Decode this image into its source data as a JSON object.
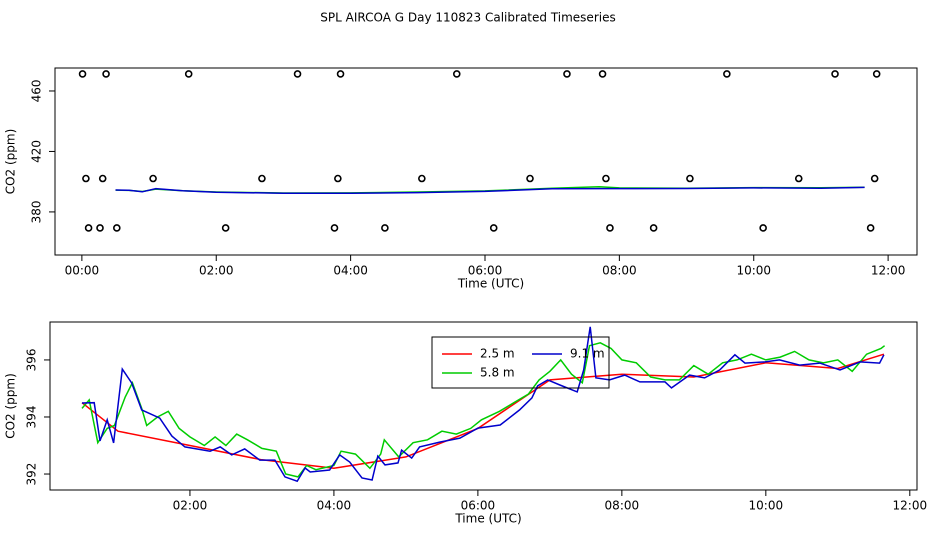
{
  "chart_data": [
    {
      "type": "line",
      "title": "SPL AIRCOA G  Day 110823  Calibrated Timeseries",
      "xlabel": "Time (UTC)",
      "ylabel": "CO2 (ppm)",
      "xlim": [
        -0.4,
        12.43
      ],
      "ylim": [
        351.5,
        475.2
      ],
      "xticks": [
        {
          "value": 0,
          "label": "00:00"
        },
        {
          "value": 2,
          "label": "02:00"
        },
        {
          "value": 4,
          "label": "04:00"
        },
        {
          "value": 6,
          "label": "06:00"
        },
        {
          "value": 8,
          "label": "08:00"
        },
        {
          "value": 10,
          "label": "10:00"
        },
        {
          "value": 12,
          "label": "12:00"
        }
      ],
      "yticks": [
        380,
        420,
        460
      ],
      "series": [
        {
          "color": "#00cc00",
          "x": [
            0.5,
            0.7,
            0.9,
            1.1,
            1.5,
            2.0,
            3.0,
            4.0,
            5.0,
            6.0,
            7.0,
            7.7,
            8.0,
            9.0,
            10.0,
            11.0,
            11.65
          ],
          "values": [
            394.4,
            394.2,
            393.5,
            395.1,
            394.0,
            393.2,
            392.5,
            392.6,
            393.2,
            393.9,
            395.6,
            396.6,
            395.9,
            395.7,
            396.1,
            396.0,
            396.3
          ]
        },
        {
          "color": "#0000cc",
          "x": [
            0.5,
            0.7,
            0.9,
            1.1,
            1.5,
            2.0,
            3.0,
            4.0,
            5.0,
            6.0,
            7.0,
            7.7,
            8.0,
            9.0,
            10.0,
            11.0,
            11.65
          ],
          "values": [
            394.5,
            394.3,
            393.3,
            395.4,
            394.0,
            393.0,
            392.4,
            392.3,
            392.8,
            393.6,
            395.3,
            395.4,
            395.4,
            395.5,
            395.9,
            395.7,
            396.2
          ]
        },
        {
          "color": "#000000",
          "marker": "circle",
          "x": [
            0.01,
            0.36,
            1.59,
            3.21,
            3.85,
            5.58,
            7.22,
            7.75,
            9.6,
            11.21,
            11.83
          ],
          "values": [
            471.3,
            471.3,
            471.3,
            471.3,
            471.3,
            471.3,
            471.3,
            471.3,
            471.3,
            471.3,
            471.3
          ]
        },
        {
          "color": "#000000",
          "marker": "circle",
          "x": [
            0.06,
            0.31,
            1.06,
            2.68,
            3.81,
            5.06,
            6.67,
            7.8,
            9.05,
            10.67,
            11.8
          ],
          "values": [
            402.1,
            402.1,
            402.1,
            402.1,
            402.1,
            402.1,
            402.1,
            402.1,
            402.1,
            402.1,
            402.1
          ]
        },
        {
          "color": "#000000",
          "marker": "circle",
          "x": [
            0.1,
            0.27,
            0.52,
            2.14,
            3.76,
            4.51,
            6.13,
            7.86,
            8.51,
            10.14,
            11.74
          ],
          "values": [
            369.4,
            369.4,
            369.4,
            369.4,
            369.4,
            369.4,
            369.4,
            369.4,
            369.4,
            369.4,
            369.4
          ]
        }
      ]
    },
    {
      "type": "line",
      "xlabel": "Time (UTC)",
      "ylabel": "CO2 (ppm)",
      "xlim": [
        0.056,
        12.1
      ],
      "ylim": [
        391.44,
        397.33
      ],
      "xticks": [
        {
          "value": 2,
          "label": "02:00"
        },
        {
          "value": 4,
          "label": "04:00"
        },
        {
          "value": 6,
          "label": "06:00"
        },
        {
          "value": 8,
          "label": "08:00"
        },
        {
          "value": 10,
          "label": "10:00"
        },
        {
          "value": 12,
          "label": "12:00"
        }
      ],
      "yticks": [
        392,
        394,
        396
      ],
      "legend": "top",
      "series": [
        {
          "name": "2.5 m",
          "color": "#ff0000",
          "x": [
            0.5,
            1.0,
            2.0,
            3.0,
            4.0,
            5.0,
            6.0,
            7.0,
            8.0,
            9.0,
            10.0,
            11.0,
            11.64
          ],
          "values": [
            394.5,
            393.5,
            393.0,
            392.5,
            392.2,
            392.6,
            393.6,
            395.3,
            395.5,
            395.4,
            395.9,
            395.7,
            396.2
          ]
        },
        {
          "name": "5.8 m",
          "color": "#00cc00",
          "x": [
            0.5,
            0.6,
            0.72,
            0.85,
            0.95,
            1.1,
            1.2,
            1.33,
            1.4,
            1.55,
            1.7,
            1.85,
            2.0,
            2.2,
            2.35,
            2.5,
            2.65,
            2.8,
            3.0,
            3.2,
            3.33,
            3.5,
            3.62,
            3.75,
            4.0,
            4.1,
            4.3,
            4.5,
            4.65,
            4.7,
            4.9,
            5.1,
            5.3,
            5.5,
            5.7,
            5.9,
            6.05,
            6.3,
            6.5,
            6.7,
            6.85,
            7.0,
            7.15,
            7.3,
            7.45,
            7.55,
            7.7,
            7.85,
            8.0,
            8.2,
            8.4,
            8.6,
            8.8,
            9.0,
            9.2,
            9.4,
            9.6,
            9.8,
            10.0,
            10.2,
            10.4,
            10.6,
            10.8,
            11.0,
            11.2,
            11.4,
            11.6,
            11.65
          ],
          "values": [
            394.3,
            394.6,
            393.1,
            393.6,
            393.7,
            394.7,
            395.2,
            394.3,
            393.7,
            394.0,
            394.2,
            393.6,
            393.3,
            393.0,
            393.3,
            393.0,
            393.4,
            393.2,
            392.9,
            392.8,
            392.0,
            391.9,
            392.3,
            392.15,
            392.3,
            392.8,
            392.7,
            392.2,
            392.7,
            393.2,
            392.6,
            393.1,
            393.2,
            393.5,
            393.4,
            393.6,
            393.9,
            394.2,
            394.5,
            394.8,
            395.3,
            395.6,
            396.0,
            395.5,
            395.2,
            396.5,
            396.6,
            396.4,
            396.0,
            395.9,
            395.4,
            395.3,
            395.3,
            395.8,
            395.5,
            395.9,
            396.0,
            396.2,
            396.0,
            396.1,
            396.3,
            396.0,
            395.9,
            396.0,
            395.6,
            396.2,
            396.4,
            396.5
          ]
        },
        {
          "name": "9.1 m",
          "color": "#0000cc",
          "x": [
            0.5,
            0.67,
            0.75,
            0.85,
            0.94,
            1.06,
            1.19,
            1.33,
            1.58,
            1.75,
            1.93,
            2.28,
            2.42,
            2.58,
            2.76,
            2.97,
            3.18,
            3.32,
            3.49,
            3.6,
            3.67,
            3.94,
            4.08,
            4.22,
            4.39,
            4.53,
            4.61,
            4.71,
            4.89,
            4.94,
            5.08,
            5.19,
            5.47,
            5.75,
            6.0,
            6.31,
            6.58,
            6.75,
            6.83,
            6.97,
            7.14,
            7.38,
            7.47,
            7.56,
            7.64,
            7.83,
            8.04,
            8.25,
            8.6,
            8.69,
            8.94,
            9.15,
            9.36,
            9.57,
            9.71,
            9.99,
            10.19,
            10.47,
            10.75,
            11.03,
            11.31,
            11.58,
            11.64
          ],
          "values": [
            394.49,
            394.5,
            393.16,
            393.9,
            393.09,
            395.68,
            395.2,
            394.25,
            393.96,
            393.33,
            392.95,
            392.8,
            392.95,
            392.67,
            392.88,
            392.49,
            392.49,
            391.9,
            391.75,
            392.21,
            392.07,
            392.14,
            392.67,
            392.42,
            391.86,
            391.79,
            392.63,
            392.32,
            392.39,
            392.84,
            392.56,
            392.95,
            393.12,
            393.26,
            393.61,
            393.72,
            394.25,
            394.67,
            395.09,
            395.3,
            395.12,
            394.88,
            395.65,
            397.16,
            395.37,
            395.3,
            395.47,
            395.23,
            395.23,
            395.02,
            395.47,
            395.37,
            395.65,
            396.18,
            395.89,
            395.93,
            396.0,
            395.82,
            395.89,
            395.65,
            395.93,
            395.89,
            396.18
          ]
        }
      ]
    }
  ]
}
